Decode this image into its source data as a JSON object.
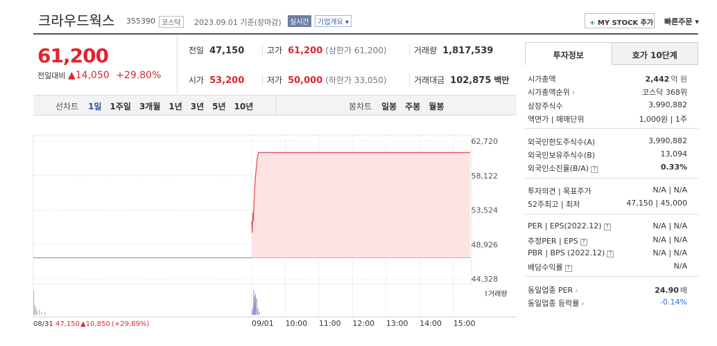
{
  "header": {
    "title": "크라우드웍스",
    "code": "355390",
    "market": "코스닥",
    "date": "2023.09.01 기준(장마감)",
    "live": "실시간",
    "overview": "기업개요",
    "mystock": "MY STOCK 추가",
    "quick_order": "빠른주문"
  },
  "quote": {
    "price": "61,200",
    "change_label": "전일대비",
    "change": "14,050",
    "change_rate": "+29.80%",
    "stats": [
      [
        {
          "label": "전일",
          "value": "47,150"
        },
        {
          "label": "고가",
          "value": "61,200",
          "note": "(상한가 61,200)",
          "color": "red"
        },
        {
          "label": "거래량",
          "value": "1,817,539"
        }
      ],
      [
        {
          "label": "시가",
          "value": "53,200",
          "color": "red"
        },
        {
          "label": "저가",
          "value": "50,000",
          "note": "(하한가 33,050)",
          "color": "red"
        },
        {
          "label": "거래대금",
          "value": "102,875",
          "unit": "백만"
        }
      ]
    ]
  },
  "tabs": {
    "line_label": "선차트",
    "line": [
      "1일",
      "1주일",
      "3개월",
      "1년",
      "3년",
      "5년",
      "10년"
    ],
    "candle_label": "봉차트",
    "candle": [
      "일봉",
      "주봉",
      "월봉"
    ]
  },
  "chart": {
    "xlim": [
      -390,
      390
    ],
    "ylim": [
      44328,
      62720
    ],
    "yticks": [
      {
        "value": 62720,
        "label": "62,720"
      },
      {
        "value": 58122,
        "label": "58,122"
      },
      {
        "value": 53524,
        "label": "53,524"
      },
      {
        "value": 48926,
        "label": "48,926"
      },
      {
        "value": 44328,
        "label": "44,328"
      }
    ],
    "xticks": [
      {
        "value": -390,
        "label": "08/31"
      },
      {
        "value": 0,
        "label": "09/01"
      },
      {
        "value": 60,
        "label": "10:00"
      },
      {
        "value": 120,
        "label": "11:00"
      },
      {
        "value": 180,
        "label": "12:00"
      },
      {
        "value": 240,
        "label": "13:00"
      },
      {
        "value": 300,
        "label": "14:00"
      },
      {
        "value": 360,
        "label": "15:00"
      }
    ],
    "prev_close": 47150,
    "series": [
      {
        "name": "08/31",
        "color": "#999999",
        "x": [
          -390,
          0
        ],
        "values": [
          47150,
          47150
        ]
      },
      {
        "name": "09/01",
        "color": "#e0525a",
        "x": [
          0,
          1,
          2,
          3,
          4,
          5,
          6,
          8,
          10,
          12,
          390
        ],
        "values": [
          52000,
          50500,
          53200,
          52000,
          54500,
          55500,
          57500,
          59000,
          60500,
          61200,
          61200
        ]
      }
    ],
    "volume": {
      "name": "거래량",
      "series": [
        {
          "color": "#b5b5b5",
          "x": [
            -390,
            -388,
            -386,
            -384,
            -380,
            -376,
            -370
          ],
          "values": [
            30,
            12,
            8,
            5,
            6,
            4,
            3
          ]
        },
        {
          "color": "#9d8fd6",
          "x": [
            0,
            2,
            3,
            4,
            5,
            6,
            8,
            10,
            13
          ],
          "values": [
            6,
            10,
            30,
            22,
            14,
            25,
            20,
            8,
            4
          ]
        }
      ]
    },
    "footer": {
      "date": "08/31",
      "close": "47,150",
      "change": "▲10,850",
      "rate": "(+29.89%)"
    }
  },
  "side": {
    "tabs": [
      "투자정보",
      "호가 10단계"
    ],
    "groups": [
      [
        {
          "label": "시가총액",
          "value": "2,442",
          "unit": "억 원",
          "bold": true
        },
        {
          "label": "시가총액순위",
          "value": "코스닥 368위",
          "link": true
        },
        {
          "label": "상장주식수",
          "value": "3,990,882"
        },
        {
          "label": "액면가 | 매매단위",
          "value": "1,000원 | 1주"
        }
      ],
      [
        {
          "label": "외국인한도주식수(A)",
          "value": "3,990,882"
        },
        {
          "label": "외국인보유주식수(B)",
          "value": "13,094"
        },
        {
          "label": "외국인소진율(B/A)",
          "value": "0.33%",
          "help": true,
          "bold": true
        }
      ],
      [
        {
          "label": "투자의견 | 목표주가",
          "value": "N/A | N/A"
        },
        {
          "label": "52주최고 | 최저",
          "value": "47,150 | 45,000"
        }
      ],
      [
        {
          "label": "PER | EPS(2022.12)",
          "value": "N/A | N/A",
          "help": true
        },
        {
          "label": "추정PER | EPS",
          "value": "N/A | N/A",
          "help": true
        },
        {
          "label": "PBR | BPS (2022.12)",
          "value": "N/A | N/A",
          "help": true
        },
        {
          "label": "배당수익률",
          "value": "N/A",
          "help": true
        }
      ],
      [
        {
          "label": "동일업종 PER",
          "value": "24.90",
          "unit": "배",
          "link": true,
          "bold": true
        },
        {
          "label": "동일업종 등락률",
          "value": "-0.14%",
          "link": true,
          "color": "blue"
        }
      ]
    ]
  }
}
